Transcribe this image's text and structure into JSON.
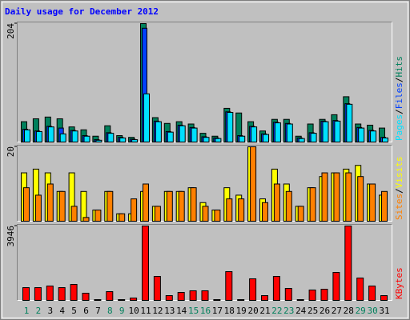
{
  "chart_data": {
    "type": "bar",
    "title": "Daily usage for December 2012",
    "categories": [
      "1",
      "2",
      "3",
      "4",
      "5",
      "6",
      "7",
      "8",
      "9",
      "10",
      "11",
      "12",
      "13",
      "14",
      "15",
      "16",
      "17",
      "18",
      "19",
      "20",
      "21",
      "22",
      "23",
      "24",
      "25",
      "26",
      "27",
      "28",
      "29",
      "30",
      "31"
    ],
    "category_colors": [
      "#00805c",
      "#00805c",
      "#000000",
      "#000000",
      "#000000",
      "#000000",
      "#000000",
      "#00805c",
      "#00805c",
      "#000000",
      "#000000",
      "#000000",
      "#000000",
      "#000000",
      "#00805c",
      "#00805c",
      "#000000",
      "#000000",
      "#000000",
      "#000000",
      "#000000",
      "#00805c",
      "#00805c",
      "#000000",
      "#000000",
      "#000000",
      "#000000",
      "#000000",
      "#00805c",
      "#00805c",
      "#000000"
    ],
    "legend_separator": "/",
    "panels": [
      {
        "ylim": [
          0,
          204
        ],
        "yticks": [
          204
        ],
        "series": [
          {
            "name": "Hits",
            "color": "#00805c",
            "values": [
              35,
              40,
              43,
              40,
              26,
              21,
              10,
              28,
              11,
              8,
              204,
              42,
              32,
              35,
              31,
              15,
              10,
              58,
              50,
              35,
              19,
              39,
              39,
              10,
              31,
              39,
              47,
              78,
              31,
              29,
              24
            ]
          },
          {
            "name": "Files",
            "color": "#0040ff",
            "values": [
              22,
              19,
              27,
              24,
              20,
              11,
              4,
              16,
              8,
              5,
              196,
              36,
              18,
              29,
              25,
              9,
              7,
              52,
              11,
              27,
              14,
              34,
              32,
              7,
              16,
              36,
              37,
              66,
              25,
              20,
              8
            ]
          },
          {
            "name": "Pages",
            "color": "#00e0ff",
            "values": [
              21,
              18,
              26,
              14,
              19,
              10,
              3,
              15,
              7,
              4,
              83,
              35,
              17,
              28,
              24,
              8,
              6,
              51,
              10,
              26,
              13,
              33,
              31,
              6,
              15,
              35,
              36,
              65,
              24,
              19,
              7
            ]
          }
        ]
      },
      {
        "ylim": [
          0,
          20
        ],
        "yticks": [
          20
        ],
        "series": [
          {
            "name": "Visits",
            "color": "#ffff00",
            "values": [
              13,
              14,
              13,
              8,
              13,
              8,
              3,
              8,
              2,
              2,
              8,
              4,
              8,
              8,
              9,
              5,
              3,
              9,
              7,
              20,
              6,
              14,
              10,
              4,
              9,
              12,
              13,
              14,
              15,
              10,
              7
            ]
          },
          {
            "name": "Sites",
            "color": "#ff8000",
            "values": [
              9,
              7,
              10,
              8,
              4,
              1,
              3,
              8,
              2,
              6,
              10,
              4,
              8,
              8,
              9,
              4,
              3,
              6,
              6,
              20,
              5,
              10,
              8,
              4,
              9,
              13,
              13,
              13,
              12,
              10,
              8
            ]
          }
        ]
      },
      {
        "ylim": [
          0,
          3946
        ],
        "yticks": [
          3946
        ],
        "series": [
          {
            "name": "KBytes",
            "color": "#ff0000",
            "values": [
              678,
              678,
              763,
              678,
              848,
              382,
              42,
              466,
              42,
              127,
              3946,
              1272,
              254,
              424,
              509,
              509,
              42,
              1526,
              42,
              1145,
              254,
              1272,
              636,
              42,
              551,
              593,
              1484,
              3946,
              1187,
              763,
              254
            ]
          }
        ]
      }
    ]
  }
}
